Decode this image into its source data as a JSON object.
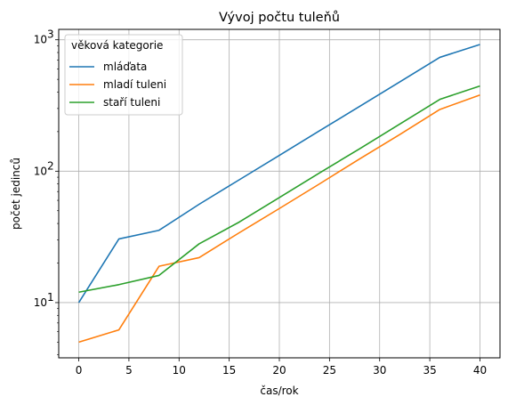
{
  "chart_data": {
    "type": "line",
    "title": "Vývoj počtu tuleňů",
    "xlabel": "čas/rok",
    "ylabel": "počet jedinců",
    "yscale": "log",
    "xlim": [
      -2,
      42
    ],
    "ylim": [
      3.8,
      1200
    ],
    "grid": true,
    "legend": {
      "title": "věková kategorie",
      "placement": "top-left"
    },
    "x": [
      0,
      4,
      8,
      12,
      16,
      20,
      24,
      28,
      32,
      36,
      40
    ],
    "series": [
      {
        "name": "mláďata",
        "color": "#1f77b4",
        "values": [
          10.0,
          30.5,
          35.5,
          56.0,
          86.0,
          132.0,
          203.0,
          311.0,
          478.0,
          735.0,
          920.0
        ]
      },
      {
        "name": "mladí tuleni",
        "color": "#ff7f0e",
        "values": [
          5.0,
          6.2,
          18.9,
          22.0,
          34.0,
          52.0,
          80.0,
          124.0,
          190.0,
          295.0,
          380.0
        ]
      },
      {
        "name": "staří tuleni",
        "color": "#2ca02c",
        "values": [
          12.0,
          13.7,
          16.1,
          28.0,
          41.0,
          63.0,
          97.0,
          148.0,
          228.0,
          352.0,
          445.0
        ]
      }
    ],
    "x_ticks": [
      0,
      5,
      10,
      15,
      20,
      25,
      30,
      35,
      40
    ],
    "x_tick_labels": [
      "0",
      "5",
      "10",
      "15",
      "20",
      "25",
      "30",
      "35",
      "40"
    ],
    "y_ticks": [
      10,
      100,
      1000
    ],
    "y_tick_labels": [
      "10",
      "10",
      "10"
    ],
    "y_tick_exponents": [
      "1",
      "2",
      "3"
    ]
  }
}
